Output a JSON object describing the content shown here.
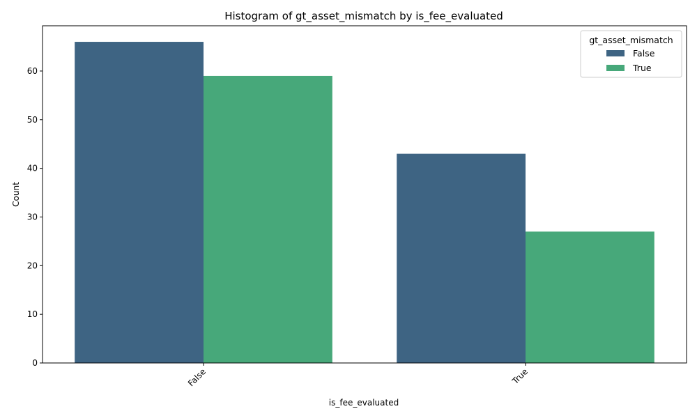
{
  "chart_data": {
    "type": "bar",
    "title": "Histogram of gt_asset_mismatch by is_fee_evaluated",
    "xlabel": "is_fee_evaluated",
    "ylabel": "Count",
    "categories": [
      "False",
      "True"
    ],
    "series": [
      {
        "name": "False",
        "values": [
          66,
          43
        ],
        "color": "#3e6483"
      },
      {
        "name": "True",
        "values": [
          59,
          27
        ],
        "color": "#47a87a"
      }
    ],
    "legend": {
      "title": "gt_asset_mismatch",
      "placement": "top-right"
    },
    "ylim": [
      0,
      69.3
    ],
    "yticks": [
      0,
      10,
      20,
      30,
      40,
      50,
      60
    ],
    "xtick_rotation": 45,
    "grid": false
  }
}
